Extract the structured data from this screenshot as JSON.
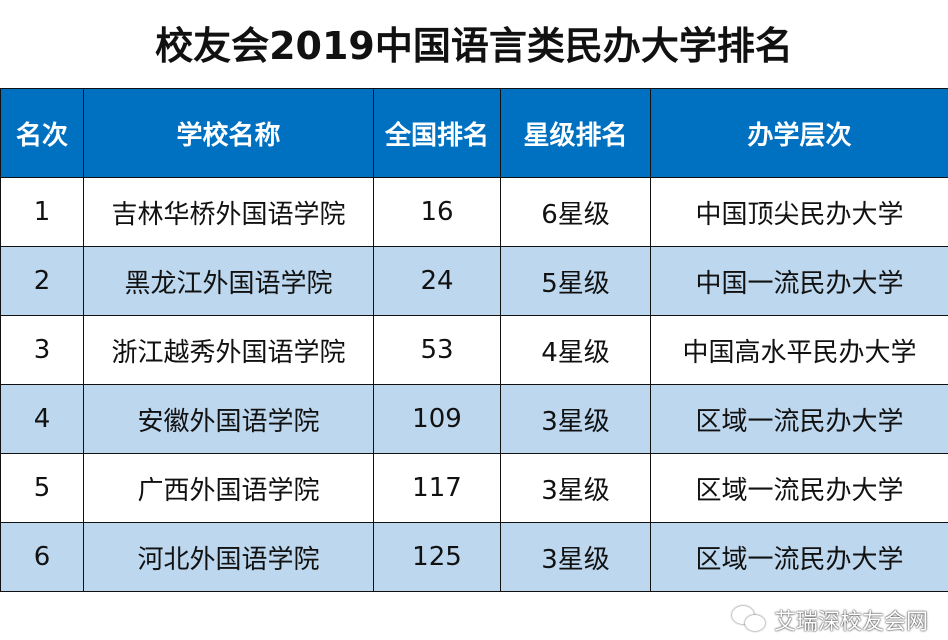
{
  "title": "校友会2019中国语言类民办大学排名",
  "headers": [
    "名次",
    "学校名称",
    "全国排名",
    "星级排名",
    "办学层次"
  ],
  "rows": [
    [
      "1",
      "吉林华桥外国语学院",
      "16",
      "6星级",
      "中国顶尖民办大学"
    ],
    [
      "2",
      "黑龙江外国语学院",
      "24",
      "5星级",
      "中国一流民办大学"
    ],
    [
      "3",
      "浙江越秀外国语学院",
      "53",
      "4星级",
      "中国高水平民办大学"
    ],
    [
      "4",
      "安徽外国语学院",
      "109",
      "3星级",
      "区域一流民办大学"
    ],
    [
      "5",
      "广西外国语学院",
      "117",
      "3星级",
      "区域一流民办大学"
    ],
    [
      "6",
      "河北外国语学院",
      "125",
      "3星级",
      "区域一流民办大学"
    ]
  ],
  "watermark": {
    "text": "艾瑞深校友会网",
    "icon": "wechat-icon"
  },
  "colors": {
    "header": "#0070c0",
    "alt_row": "#bdd7ee"
  }
}
